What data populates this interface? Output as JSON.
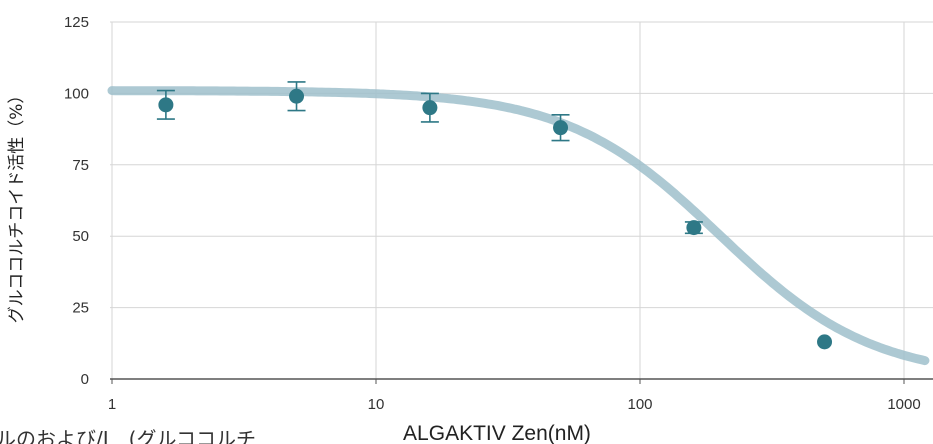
{
  "chart_data": {
    "type": "scatter",
    "title": "",
    "xlabel": "ALGAKTIV Zen(nM)",
    "ylabel": "グルココルチコイド活性（%）",
    "x_scale": "log",
    "xlim": [
      1,
      1200
    ],
    "ylim": [
      0,
      125
    ],
    "x_ticks": [
      1,
      10,
      100,
      1000
    ],
    "x_tick_labels": [
      "1",
      "10",
      "100",
      "1000"
    ],
    "y_ticks": [
      0,
      25,
      50,
      75,
      100,
      125
    ],
    "y_tick_labels": [
      "0",
      "25",
      "50",
      "75",
      "100",
      "125"
    ],
    "grid": true,
    "legend": "none",
    "series": [
      {
        "x": [
          1.6,
          5,
          16,
          50,
          160,
          500
        ],
        "y": [
          96,
          99,
          95,
          88,
          53,
          13
        ],
        "error": [
          5,
          5,
          5,
          4.5,
          2,
          0
        ]
      }
    ],
    "fit_curve": {
      "type": "sigmoid",
      "x_range": [
        1,
        1200
      ]
    },
    "colors": {
      "point": "#2e7886",
      "curve": "#9fc0cb",
      "grid": "#d6d6d6",
      "axis": "#555555"
    }
  },
  "footer_cutoff_text": "ルのおよび/I　(グルココルチ"
}
